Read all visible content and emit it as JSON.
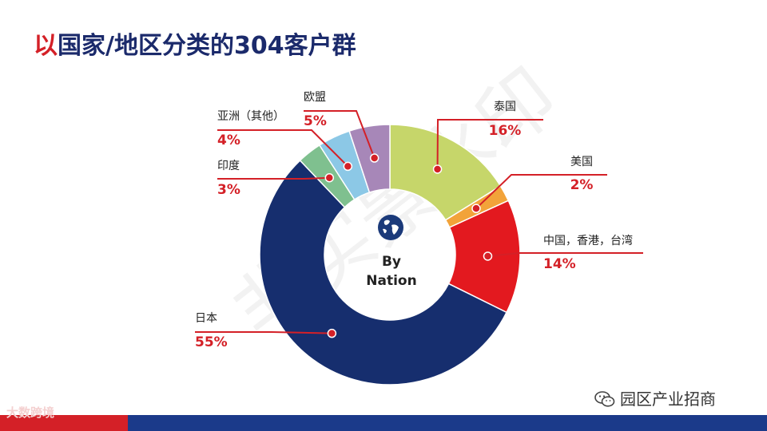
{
  "title": {
    "accent": "以",
    "rest": "国家/地区分类的304客户群"
  },
  "center": {
    "line1": "By",
    "line2": "Nation"
  },
  "watermark": "非实景水印",
  "brand": {
    "name": "园区产业招商",
    "icon": "wechat-icon"
  },
  "bottom_logo": "大数跨境",
  "chart_data": {
    "type": "donut",
    "title": "以国家/地区分类的304客户群",
    "start_angle_deg": 0,
    "slices": [
      {
        "name": "泰国",
        "value": 16,
        "label": "16%",
        "color": "#c6d66a"
      },
      {
        "name": "美国",
        "value": 2,
        "label": "2%",
        "color": "#f2a33a"
      },
      {
        "name": "中国，香港，台湾",
        "value": 14,
        "label": "14%",
        "color": "#e3191f"
      },
      {
        "name": "日本",
        "value": 55,
        "label": "55%",
        "color": "#162e6e"
      },
      {
        "name": "印度",
        "value": 3,
        "label": "3%",
        "color": "#7fc08f"
      },
      {
        "name": "亚洲（其他）",
        "value": 4,
        "label": "4%",
        "color": "#8cc8e6"
      },
      {
        "name": "欧盟",
        "value": 5,
        "label": "5%",
        "color": "#a787b8"
      }
    ],
    "annotation_color": "#d42027"
  }
}
